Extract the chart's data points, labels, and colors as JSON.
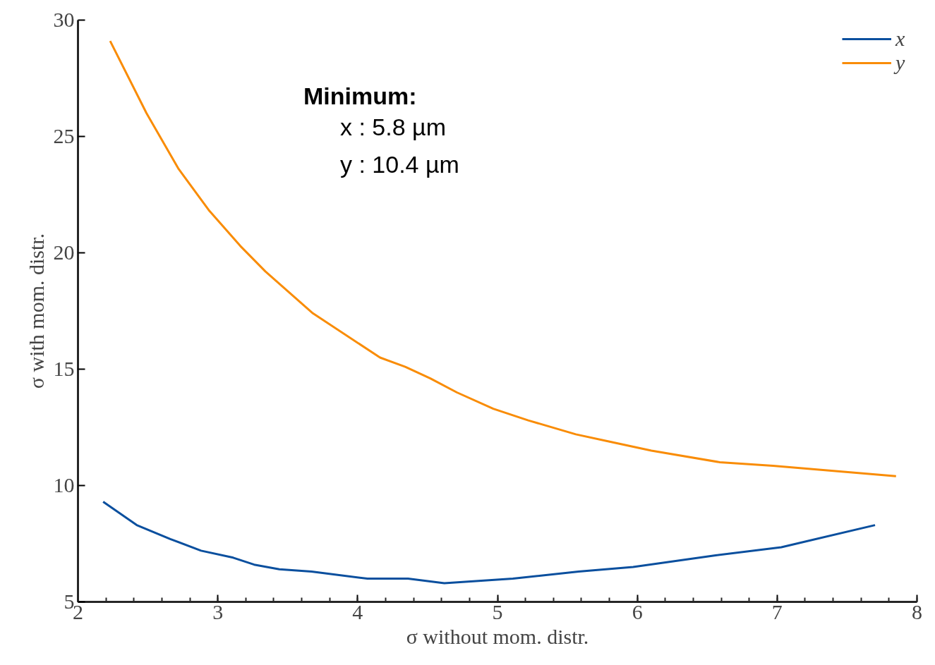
{
  "chart_data": {
    "type": "line",
    "xlabel": "σ without mom. distr.",
    "ylabel": "σ with mom. distr.",
    "xlim": [
      2,
      8
    ],
    "ylim": [
      5,
      30
    ],
    "xticks": [
      2,
      3,
      4,
      5,
      6,
      7,
      8
    ],
    "yticks": [
      5,
      10,
      15,
      20,
      25,
      30
    ],
    "grid": false,
    "legend": "top right",
    "line_style": "solid",
    "marker": "none",
    "legend_title": "Minimum:",
    "annotations": [
      "x : 5.8 µm",
      "y : 10.4 µm"
    ],
    "series": [
      {
        "name": "x",
        "color": "#0a4f9e",
        "x": [
          2.18,
          2.42,
          2.66,
          2.88,
          3.11,
          3.26,
          3.44,
          3.67,
          4.07,
          4.36,
          4.62,
          5.11,
          5.58,
          5.97,
          6.56,
          7.03,
          7.7
        ],
        "values": [
          9.3,
          8.3,
          7.7,
          7.2,
          6.9,
          6.6,
          6.4,
          6.3,
          6.0,
          6.0,
          5.8,
          6.0,
          6.3,
          6.5,
          7.0,
          7.35,
          8.3
        ]
      },
      {
        "name": "y",
        "color": "#f98c06",
        "x": [
          2.23,
          2.49,
          2.72,
          2.94,
          3.16,
          3.34,
          3.51,
          3.68,
          4.16,
          4.34,
          4.52,
          4.71,
          4.97,
          5.22,
          5.56,
          5.79,
          6.1,
          6.59,
          6.97,
          7.85
        ],
        "values": [
          29.1,
          26.0,
          23.6,
          21.8,
          20.3,
          19.2,
          18.3,
          17.4,
          15.5,
          15.1,
          14.6,
          14.0,
          13.3,
          12.8,
          12.2,
          11.9,
          11.5,
          11.0,
          10.85,
          10.4
        ]
      }
    ]
  }
}
